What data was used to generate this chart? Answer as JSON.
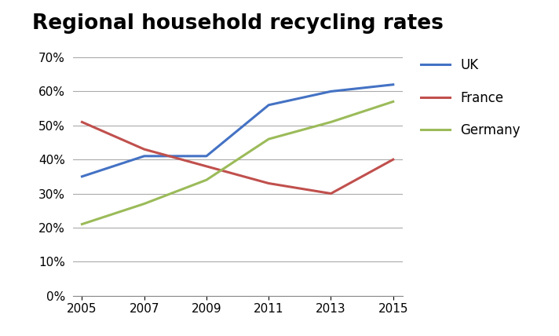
{
  "title": "Regional household recycling rates",
  "years": [
    2005,
    2007,
    2009,
    2011,
    2013,
    2015
  ],
  "series": {
    "UK": {
      "values": [
        0.35,
        0.41,
        0.41,
        0.56,
        0.6,
        0.62
      ],
      "color": "#4472C4",
      "label": "UK"
    },
    "France": {
      "values": [
        0.51,
        0.43,
        0.38,
        0.33,
        0.3,
        0.4
      ],
      "color": "#C0504D",
      "label": "France"
    },
    "Germany": {
      "values": [
        0.21,
        0.27,
        0.34,
        0.46,
        0.51,
        0.57
      ],
      "color": "#9BBB59",
      "label": "Germany"
    }
  },
  "ylim": [
    0.0,
    0.75
  ],
  "yticks": [
    0.0,
    0.1,
    0.2,
    0.3,
    0.4,
    0.5,
    0.6,
    0.7
  ],
  "background_color": "#FFFFFF",
  "title_fontsize": 19,
  "legend_fontsize": 12,
  "tick_fontsize": 11,
  "line_width": 2.2,
  "grid_color": "#AAAAAA",
  "spine_color": "#888888"
}
